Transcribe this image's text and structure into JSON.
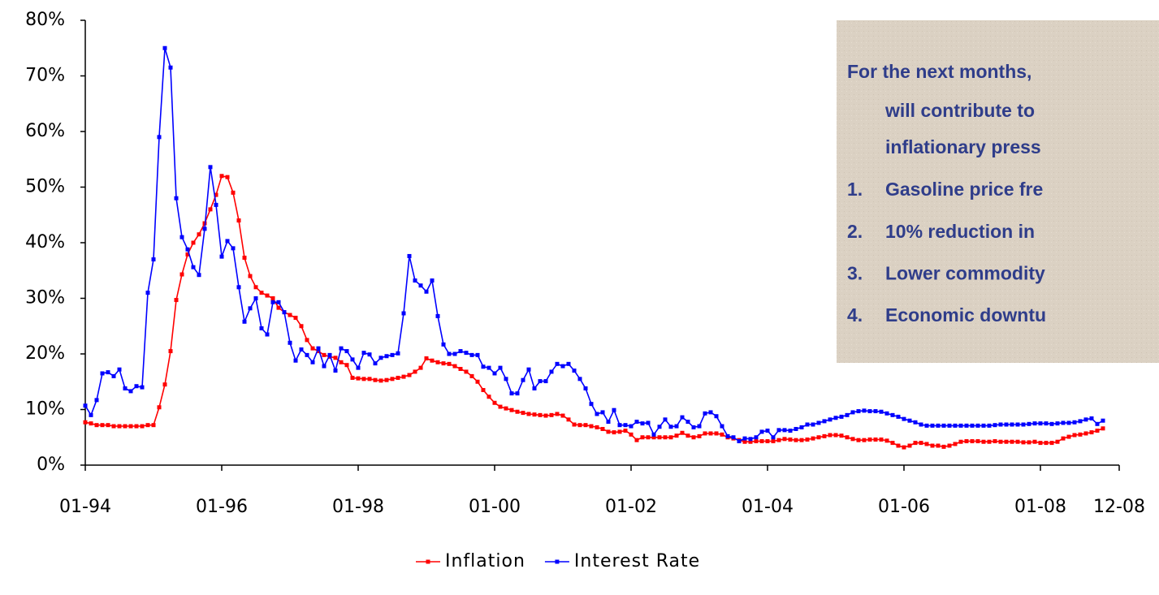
{
  "chart_data": {
    "type": "line",
    "categories": [
      "01-94",
      null,
      null,
      null,
      null,
      null,
      null,
      null,
      null,
      null,
      null,
      null,
      null,
      null,
      null,
      null,
      null,
      null,
      null,
      null,
      null,
      null,
      null,
      null,
      "01-96",
      null,
      null,
      null,
      null,
      null,
      null,
      null,
      null,
      null,
      null,
      null,
      null,
      null,
      null,
      null,
      null,
      null,
      null,
      null,
      null,
      null,
      null,
      null,
      "01-98",
      null,
      null,
      null,
      null,
      null,
      null,
      null,
      null,
      null,
      null,
      null,
      null,
      null,
      null,
      null,
      null,
      null,
      null,
      null,
      null,
      null,
      null,
      null,
      "01-00",
      null,
      null,
      null,
      null,
      null,
      null,
      null,
      null,
      null,
      null,
      null,
      null,
      null,
      null,
      null,
      null,
      null,
      null,
      null,
      null,
      null,
      null,
      null,
      "01-02",
      null,
      null,
      null,
      null,
      null,
      null,
      null,
      null,
      null,
      null,
      null,
      null,
      null,
      null,
      null,
      null,
      null,
      null,
      null,
      null,
      null,
      null,
      null,
      "01-04",
      null,
      null,
      null,
      null,
      null,
      null,
      null,
      null,
      null,
      null,
      null,
      null,
      null,
      null,
      null,
      null,
      null,
      null,
      null,
      null,
      null,
      null,
      null,
      "01-06",
      null,
      null,
      null,
      null,
      null,
      null,
      null,
      null,
      null,
      null,
      null,
      null,
      null,
      null,
      null,
      null,
      null,
      null,
      null,
      null,
      null,
      null,
      null,
      "01-08",
      null,
      null,
      null,
      null,
      null,
      null,
      null,
      null,
      null,
      null,
      "12-08"
    ],
    "series": [
      {
        "name": "Inflation",
        "color": "#ff0000",
        "values": [
          7.7,
          7.5,
          7.2,
          7.2,
          7.2,
          7.0,
          7.0,
          7.0,
          7.0,
          7.0,
          7.0,
          7.2,
          7.2,
          10.4,
          14.5,
          20.5,
          29.7,
          34.3,
          37.9,
          40.0,
          41.5,
          43.5,
          46.0,
          48.6,
          52.0,
          51.8,
          49.0,
          44.0,
          37.3,
          34.0,
          32.0,
          31.0,
          30.5,
          30.0,
          28.3,
          27.5,
          27.0,
          26.5,
          25.0,
          22.5,
          21.0,
          20.5,
          19.8,
          19.5,
          19.3,
          18.5,
          18.0,
          15.7,
          15.6,
          15.5,
          15.5,
          15.3,
          15.2,
          15.3,
          15.5,
          15.7,
          15.9,
          16.2,
          16.8,
          17.5,
          19.2,
          18.8,
          18.5,
          18.3,
          18.2,
          17.8,
          17.3,
          16.8,
          16.0,
          15.0,
          13.5,
          12.3,
          11.2,
          10.5,
          10.2,
          9.9,
          9.6,
          9.4,
          9.2,
          9.1,
          9.0,
          8.9,
          9.0,
          9.2,
          8.9,
          8.2,
          7.3,
          7.2,
          7.2,
          7.0,
          6.8,
          6.5,
          6.0,
          5.9,
          6.0,
          6.2,
          5.5,
          4.5,
          5.0,
          5.0,
          5.0,
          5.0,
          5.0,
          5.0,
          5.3,
          5.8,
          5.3,
          5.0,
          5.2,
          5.7,
          5.7,
          5.7,
          5.5,
          5.0,
          4.8,
          4.5,
          4.2,
          4.2,
          4.3,
          4.3,
          4.3,
          4.3,
          4.5,
          4.7,
          4.6,
          4.5,
          4.5,
          4.6,
          4.8,
          5.0,
          5.2,
          5.4,
          5.4,
          5.3,
          5.0,
          4.7,
          4.5,
          4.5,
          4.6,
          4.6,
          4.6,
          4.4,
          4.0,
          3.5,
          3.2,
          3.5,
          4.0,
          4.0,
          3.8,
          3.5,
          3.5,
          3.3,
          3.5,
          3.8,
          4.2,
          4.3,
          4.3,
          4.3,
          4.2,
          4.2,
          4.3,
          4.2,
          4.2,
          4.2,
          4.2,
          4.1,
          4.1,
          4.2,
          4.0,
          4.0,
          4.0,
          4.2,
          4.8,
          5.1,
          5.4,
          5.5,
          5.7,
          5.9,
          6.2,
          6.6
        ]
      },
      {
        "name": "Interest Rate",
        "color": "#0000ff",
        "values": [
          10.7,
          9.0,
          11.7,
          16.5,
          16.7,
          16.0,
          17.2,
          13.8,
          13.3,
          14.2,
          14.0,
          31.0,
          37.0,
          59.0,
          75.0,
          71.5,
          48.0,
          41.0,
          38.8,
          35.6,
          34.2,
          42.5,
          53.6,
          46.8,
          37.5,
          40.3,
          39.0,
          32.0,
          25.8,
          28.2,
          30.0,
          24.6,
          23.5,
          29.3,
          29.3,
          27.5,
          22.0,
          18.8,
          20.8,
          19.8,
          18.5,
          21.0,
          17.8,
          19.8,
          17.0,
          21.0,
          20.5,
          19.0,
          17.5,
          20.2,
          19.9,
          18.3,
          19.3,
          19.6,
          19.8,
          20.1,
          27.3,
          37.6,
          33.2,
          32.3,
          31.2,
          33.2,
          26.8,
          21.7,
          20.0,
          20.0,
          20.5,
          20.2,
          19.8,
          19.8,
          17.7,
          17.5,
          16.5,
          17.5,
          15.5,
          12.9,
          12.9,
          15.3,
          17.2,
          13.8,
          15.1,
          15.1,
          16.8,
          18.2,
          17.8,
          18.2,
          17.0,
          15.5,
          13.8,
          11.0,
          9.2,
          9.5,
          7.8,
          9.9,
          7.2,
          7.2,
          7.0,
          7.8,
          7.5,
          7.6,
          5.5,
          6.9,
          8.2,
          6.9,
          7.0,
          8.6,
          7.8,
          6.8,
          7.0,
          9.3,
          9.5,
          8.8,
          7.0,
          5.2,
          5.0,
          4.3,
          4.8,
          4.7,
          5.0,
          6.0,
          6.2,
          5.0,
          6.3,
          6.3,
          6.2,
          6.5,
          6.8,
          7.3,
          7.3,
          7.6,
          7.9,
          8.2,
          8.5,
          8.7,
          9.0,
          9.5,
          9.7,
          9.8,
          9.7,
          9.7,
          9.6,
          9.3,
          9.0,
          8.7,
          8.3,
          8.0,
          7.7,
          7.3,
          7.1,
          7.1,
          7.1,
          7.1,
          7.1,
          7.1,
          7.1,
          7.1,
          7.1,
          7.1,
          7.1,
          7.1,
          7.2,
          7.3,
          7.3,
          7.3,
          7.3,
          7.3,
          7.4,
          7.5,
          7.5,
          7.5,
          7.4,
          7.5,
          7.6,
          7.6,
          7.7,
          7.9,
          8.2,
          8.4,
          7.4,
          8.0
        ]
      }
    ],
    "ylim": [
      0,
      80
    ],
    "yticks": [
      {
        "value": 0,
        "label": "0%"
      },
      {
        "value": 10,
        "label": "10%"
      },
      {
        "value": 20,
        "label": "20%"
      },
      {
        "value": 30,
        "label": "30%"
      },
      {
        "value": 40,
        "label": "40%"
      },
      {
        "value": 50,
        "label": "50%"
      },
      {
        "value": 60,
        "label": "60%"
      },
      {
        "value": 70,
        "label": "70%"
      },
      {
        "value": 80,
        "label": "80%"
      }
    ],
    "legend": "bottom",
    "annotation": {
      "lines": [
        "For the next months,",
        "will contribute to",
        "inflationary press"
      ],
      "items": [
        {
          "number": "1.",
          "text": "Gasoline price fre"
        },
        {
          "number": "2.",
          "text": "10% reduction in"
        },
        {
          "number": "3.",
          "text": "Lower commodity"
        },
        {
          "number": "4.",
          "text": "Economic downtu"
        }
      ]
    }
  }
}
